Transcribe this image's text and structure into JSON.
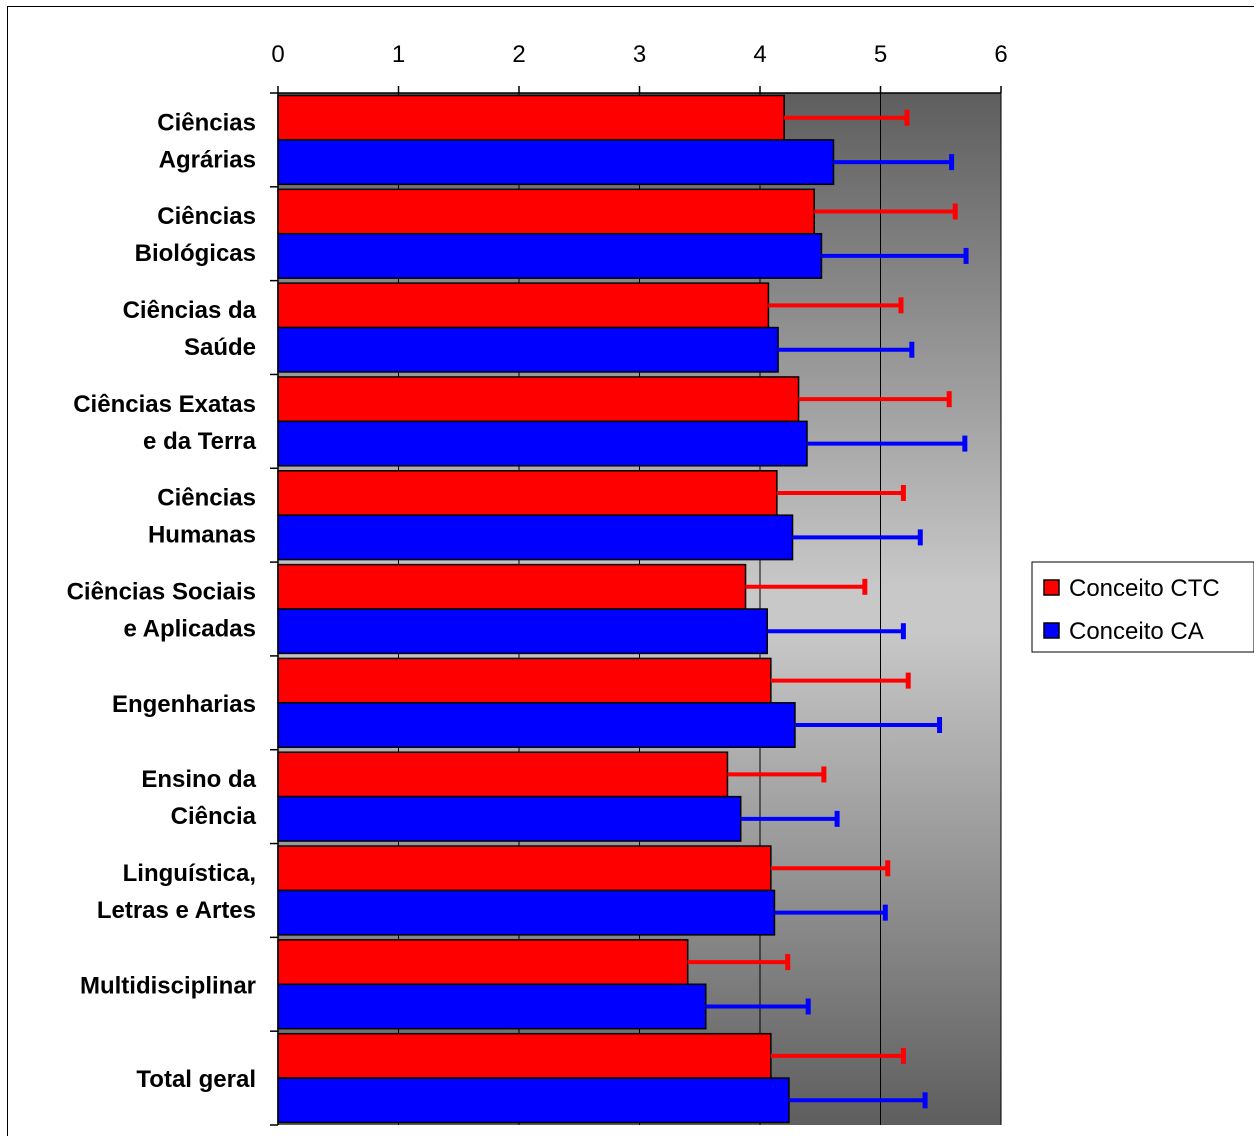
{
  "chart_data": {
    "type": "bar",
    "orientation": "horizontal",
    "categories": [
      [
        "Ciências",
        "Agrárias"
      ],
      [
        "Ciências",
        "Biológicas"
      ],
      [
        "Ciências da",
        "Saúde"
      ],
      [
        "Ciências Exatas",
        "e da Terra"
      ],
      [
        "Ciências",
        "Humanas"
      ],
      [
        "Ciências Sociais",
        "e Aplicadas"
      ],
      [
        "Engenharias"
      ],
      [
        "Ensino da",
        "Ciência"
      ],
      [
        "Linguística,",
        "Letras e Artes"
      ],
      [
        "Multidisciplinar"
      ],
      [
        "Total geral"
      ]
    ],
    "series": [
      {
        "name": "Conceito CTC",
        "color": "#ff0000",
        "values": [
          4.2,
          4.45,
          4.07,
          4.32,
          4.14,
          3.88,
          4.09,
          3.73,
          4.09,
          3.4,
          4.09
        ],
        "error": [
          1.02,
          1.17,
          1.1,
          1.25,
          1.05,
          0.99,
          1.14,
          0.8,
          0.97,
          0.83,
          1.1
        ]
      },
      {
        "name": "Conceito CA",
        "color": "#0000ff",
        "values": [
          4.61,
          4.51,
          4.15,
          4.39,
          4.27,
          4.06,
          4.29,
          3.84,
          4.12,
          3.55,
          4.24
        ],
        "error": [
          0.98,
          1.2,
          1.11,
          1.31,
          1.06,
          1.13,
          1.2,
          0.8,
          0.92,
          0.85,
          1.13
        ]
      }
    ],
    "xlim": [
      0,
      6
    ],
    "xticks": [
      0,
      1,
      2,
      3,
      4,
      5,
      6
    ],
    "axis_position": "top",
    "grid": true,
    "legend": "right",
    "plot_background": "gradient-grey"
  }
}
